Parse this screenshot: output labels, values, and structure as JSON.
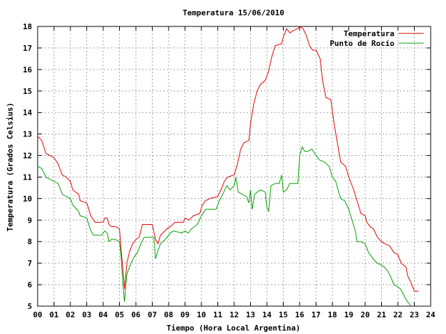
{
  "chart_data": {
    "type": "line",
    "title": "Temperatura 15/06/2010",
    "xlabel": "Tiempo (Hora Local Argentina)",
    "ylabel": "Temperatura (Grados Celsius)",
    "xlim": [
      0,
      24
    ],
    "ylim": [
      5,
      18
    ],
    "xticks": [
      "00",
      "01",
      "02",
      "03",
      "04",
      "05",
      "06",
      "07",
      "08",
      "09",
      "10",
      "11",
      "12",
      "13",
      "14",
      "15",
      "16",
      "17",
      "18",
      "19",
      "20",
      "21",
      "22",
      "23",
      "24"
    ],
    "yticks": [
      5,
      6,
      7,
      8,
      9,
      10,
      11,
      12,
      13,
      14,
      15,
      16,
      17,
      18
    ],
    "grid": true,
    "legend_position": "top-right",
    "series": [
      {
        "name": "Temperatura",
        "color": "#e00000",
        "points": [
          [
            0.0,
            12.9
          ],
          [
            0.25,
            12.7
          ],
          [
            0.5,
            12.1
          ],
          [
            0.75,
            12.0
          ],
          [
            1.0,
            11.9
          ],
          [
            1.25,
            11.6
          ],
          [
            1.5,
            11.1
          ],
          [
            1.75,
            11.0
          ],
          [
            2.0,
            10.8
          ],
          [
            2.15,
            10.4
          ],
          [
            2.5,
            10.2
          ],
          [
            2.6,
            9.9
          ],
          [
            3.0,
            9.8
          ],
          [
            3.25,
            9.2
          ],
          [
            3.5,
            8.9
          ],
          [
            4.0,
            8.9
          ],
          [
            4.1,
            9.1
          ],
          [
            4.25,
            9.1
          ],
          [
            4.35,
            8.8
          ],
          [
            4.5,
            8.7
          ],
          [
            4.75,
            8.7
          ],
          [
            5.0,
            8.6
          ],
          [
            5.1,
            7.6
          ],
          [
            5.2,
            6.8
          ],
          [
            5.3,
            5.8
          ],
          [
            5.45,
            7.0
          ],
          [
            5.6,
            7.5
          ],
          [
            5.8,
            7.9
          ],
          [
            6.0,
            8.1
          ],
          [
            6.2,
            8.2
          ],
          [
            6.4,
            8.8
          ],
          [
            7.0,
            8.8
          ],
          [
            7.2,
            8.1
          ],
          [
            7.35,
            7.9
          ],
          [
            7.5,
            8.3
          ],
          [
            7.9,
            8.6
          ],
          [
            8.1,
            8.7
          ],
          [
            8.4,
            8.9
          ],
          [
            8.9,
            8.9
          ],
          [
            9.0,
            9.1
          ],
          [
            9.25,
            9.0
          ],
          [
            9.5,
            9.2
          ],
          [
            9.9,
            9.3
          ],
          [
            10.05,
            9.7
          ],
          [
            10.25,
            9.9
          ],
          [
            10.5,
            10.0
          ],
          [
            11.0,
            10.1
          ],
          [
            11.25,
            10.5
          ],
          [
            11.4,
            10.8
          ],
          [
            11.6,
            11.0
          ],
          [
            12.0,
            11.1
          ],
          [
            12.2,
            11.6
          ],
          [
            12.4,
            12.3
          ],
          [
            12.6,
            12.6
          ],
          [
            12.9,
            12.7
          ],
          [
            13.0,
            13.5
          ],
          [
            13.2,
            14.4
          ],
          [
            13.4,
            15.0
          ],
          [
            13.6,
            15.3
          ],
          [
            13.9,
            15.5
          ],
          [
            14.1,
            15.9
          ],
          [
            14.3,
            16.6
          ],
          [
            14.5,
            17.1
          ],
          [
            14.9,
            17.2
          ],
          [
            15.0,
            17.5
          ],
          [
            15.2,
            17.9
          ],
          [
            15.4,
            17.7
          ],
          [
            15.6,
            17.8
          ],
          [
            15.9,
            17.9
          ],
          [
            16.0,
            18.0
          ],
          [
            16.2,
            17.9
          ],
          [
            16.4,
            17.6
          ],
          [
            16.6,
            17.1
          ],
          [
            16.8,
            16.9
          ],
          [
            17.0,
            16.9
          ],
          [
            17.25,
            16.5
          ],
          [
            17.4,
            15.5
          ],
          [
            17.6,
            14.7
          ],
          [
            17.9,
            14.6
          ],
          [
            18.1,
            13.5
          ],
          [
            18.3,
            12.6
          ],
          [
            18.5,
            11.7
          ],
          [
            18.8,
            11.5
          ],
          [
            19.0,
            11.0
          ],
          [
            19.3,
            10.4
          ],
          [
            19.5,
            9.9
          ],
          [
            19.75,
            9.3
          ],
          [
            20.0,
            9.2
          ],
          [
            20.1,
            8.9
          ],
          [
            20.3,
            8.7
          ],
          [
            20.5,
            8.6
          ],
          [
            20.75,
            8.2
          ],
          [
            21.0,
            8.0
          ],
          [
            21.2,
            7.9
          ],
          [
            21.5,
            7.8
          ],
          [
            21.75,
            7.5
          ],
          [
            22.0,
            7.4
          ],
          [
            22.2,
            7.0
          ],
          [
            22.5,
            6.8
          ],
          [
            22.6,
            6.4
          ],
          [
            22.8,
            6.1
          ],
          [
            22.9,
            5.9
          ],
          [
            23.0,
            5.7
          ],
          [
            23.25,
            5.7
          ]
        ]
      },
      {
        "name": "Punto de Rocío",
        "color": "#00a000",
        "points": [
          [
            0.0,
            11.5
          ],
          [
            0.25,
            11.4
          ],
          [
            0.5,
            11.0
          ],
          [
            0.75,
            10.9
          ],
          [
            1.0,
            10.8
          ],
          [
            1.25,
            10.7
          ],
          [
            1.5,
            10.2
          ],
          [
            1.75,
            10.1
          ],
          [
            2.0,
            10.0
          ],
          [
            2.15,
            9.7
          ],
          [
            2.5,
            9.4
          ],
          [
            2.6,
            9.2
          ],
          [
            3.0,
            9.1
          ],
          [
            3.2,
            8.6
          ],
          [
            3.4,
            8.3
          ],
          [
            3.9,
            8.3
          ],
          [
            4.1,
            8.5
          ],
          [
            4.25,
            8.4
          ],
          [
            4.35,
            8.0
          ],
          [
            4.5,
            8.1
          ],
          [
            4.75,
            8.1
          ],
          [
            5.0,
            8.0
          ],
          [
            5.1,
            7.3
          ],
          [
            5.2,
            6.1
          ],
          [
            5.3,
            5.2
          ],
          [
            5.45,
            6.5
          ],
          [
            5.7,
            7.0
          ],
          [
            5.9,
            7.3
          ],
          [
            6.1,
            7.5
          ],
          [
            6.3,
            7.9
          ],
          [
            6.5,
            8.2
          ],
          [
            7.1,
            8.2
          ],
          [
            7.2,
            7.2
          ],
          [
            7.35,
            7.6
          ],
          [
            7.5,
            7.9
          ],
          [
            7.8,
            8.1
          ],
          [
            8.1,
            8.4
          ],
          [
            8.3,
            8.5
          ],
          [
            8.8,
            8.4
          ],
          [
            9.0,
            8.5
          ],
          [
            9.2,
            8.4
          ],
          [
            9.4,
            8.6
          ],
          [
            9.75,
            8.8
          ],
          [
            10.0,
            9.2
          ],
          [
            10.25,
            9.5
          ],
          [
            10.9,
            9.5
          ],
          [
            11.1,
            9.9
          ],
          [
            11.3,
            10.2
          ],
          [
            11.55,
            10.6
          ],
          [
            11.75,
            10.4
          ],
          [
            12.0,
            10.6
          ],
          [
            12.1,
            11.0
          ],
          [
            12.25,
            10.3
          ],
          [
            12.5,
            10.2
          ],
          [
            12.75,
            10.1
          ],
          [
            12.9,
            9.8
          ],
          [
            13.0,
            10.4
          ],
          [
            13.1,
            9.5
          ],
          [
            13.25,
            10.2
          ],
          [
            13.4,
            10.3
          ],
          [
            13.6,
            10.4
          ],
          [
            13.9,
            10.3
          ],
          [
            14.0,
            9.6
          ],
          [
            14.1,
            9.4
          ],
          [
            14.25,
            10.6
          ],
          [
            14.5,
            10.7
          ],
          [
            14.75,
            10.7
          ],
          [
            14.9,
            11.1
          ],
          [
            15.0,
            10.3
          ],
          [
            15.2,
            10.4
          ],
          [
            15.4,
            10.7
          ],
          [
            15.6,
            10.7
          ],
          [
            15.9,
            10.7
          ],
          [
            16.0,
            12.0
          ],
          [
            16.15,
            12.4
          ],
          [
            16.3,
            12.2
          ],
          [
            16.5,
            12.2
          ],
          [
            16.75,
            12.3
          ],
          [
            17.0,
            12.0
          ],
          [
            17.2,
            11.8
          ],
          [
            17.5,
            11.7
          ],
          [
            17.8,
            11.5
          ],
          [
            18.0,
            11.0
          ],
          [
            18.2,
            10.8
          ],
          [
            18.5,
            10.0
          ],
          [
            18.75,
            9.9
          ],
          [
            19.0,
            9.5
          ],
          [
            19.2,
            9.0
          ],
          [
            19.4,
            8.5
          ],
          [
            19.5,
            8.0
          ],
          [
            19.75,
            8.0
          ],
          [
            20.0,
            7.9
          ],
          [
            20.2,
            7.5
          ],
          [
            20.4,
            7.3
          ],
          [
            20.6,
            7.1
          ],
          [
            20.75,
            7.0
          ],
          [
            21.0,
            6.9
          ],
          [
            21.2,
            6.8
          ],
          [
            21.4,
            6.6
          ],
          [
            21.6,
            6.3
          ],
          [
            21.75,
            6.0
          ],
          [
            22.0,
            5.9
          ],
          [
            22.15,
            5.8
          ],
          [
            22.3,
            5.6
          ],
          [
            22.5,
            5.3
          ],
          [
            22.6,
            5.2
          ],
          [
            22.8,
            5.0
          ]
        ]
      }
    ]
  }
}
